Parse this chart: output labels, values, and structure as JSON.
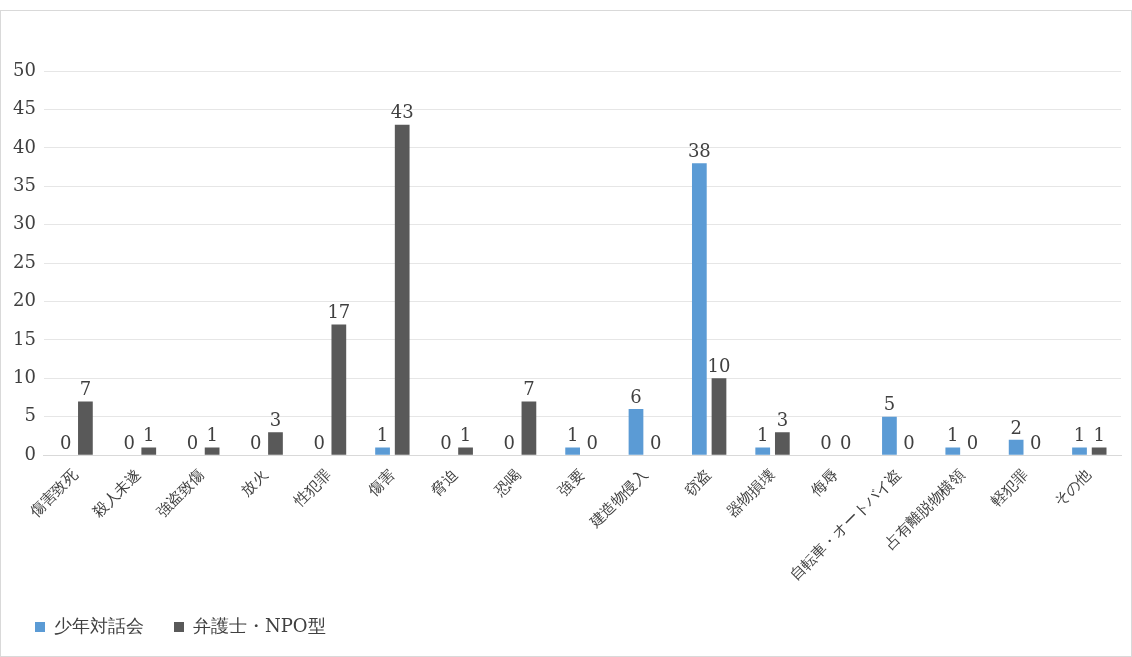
{
  "chart_data": {
    "type": "bar",
    "categories": [
      "傷害致死",
      "殺人未遂",
      "強盗致傷",
      "放火",
      "性犯罪",
      "傷害",
      "脅迫",
      "恐喝",
      "強要",
      "建造物侵入",
      "窃盗",
      "器物損壊",
      "侮辱",
      "自転車・オートバイ盗",
      "占有離脱物横領",
      "軽犯罪",
      "その他"
    ],
    "series": [
      {
        "name": "少年対話会",
        "color": "#5b9bd5",
        "values": [
          0,
          0,
          0,
          0,
          0,
          1,
          0,
          0,
          1,
          6,
          38,
          1,
          0,
          5,
          1,
          2,
          1
        ]
      },
      {
        "name": "弁護士・NPO型",
        "color": "#595959",
        "values": [
          7,
          1,
          1,
          3,
          17,
          43,
          1,
          7,
          0,
          0,
          10,
          3,
          0,
          0,
          0,
          0,
          1
        ]
      }
    ],
    "ylim": [
      0,
      50
    ],
    "yticks": [
      0,
      5,
      10,
      15,
      20,
      25,
      30,
      35,
      40,
      45,
      50
    ],
    "grid": "y",
    "legend": "bottom left",
    "data_labels": true
  }
}
